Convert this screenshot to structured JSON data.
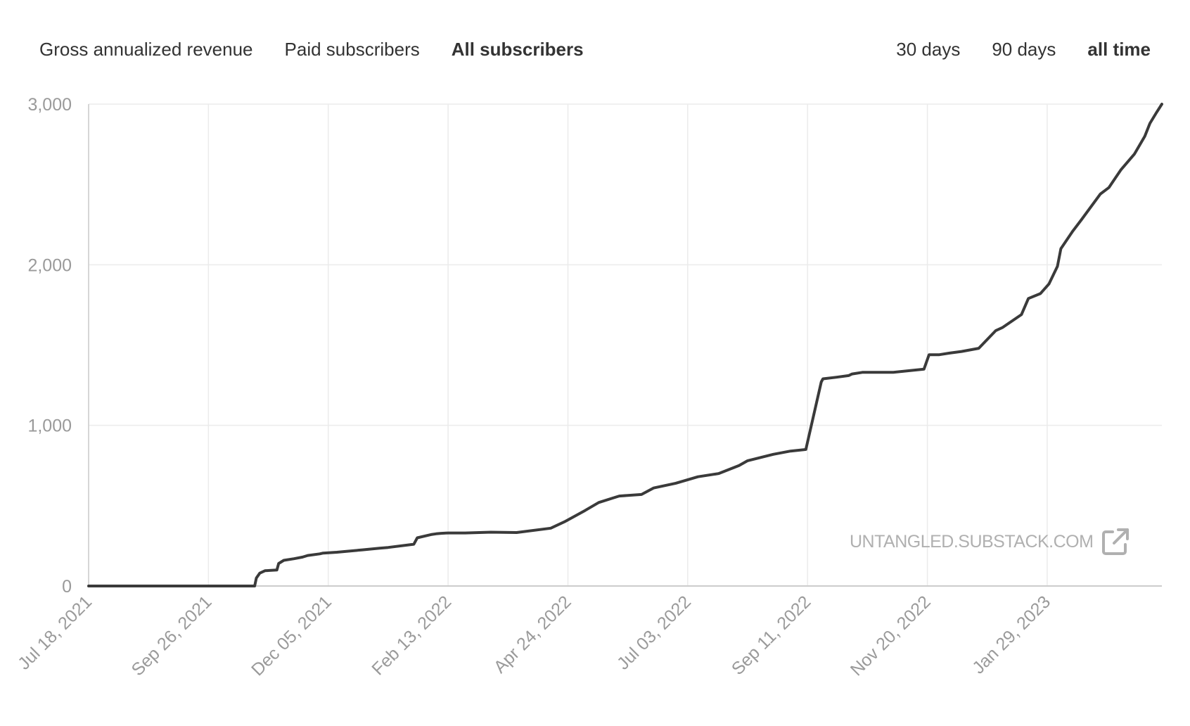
{
  "metric_tabs": [
    {
      "label": "Gross annualized revenue",
      "active": false
    },
    {
      "label": "Paid subscribers",
      "active": false
    },
    {
      "label": "All subscribers",
      "active": true
    }
  ],
  "range_tabs": [
    {
      "label": "30 days",
      "active": false
    },
    {
      "label": "90 days",
      "active": false
    },
    {
      "label": "all time",
      "active": true
    }
  ],
  "watermark": {
    "text": "UNTANGLED.SUBSTACK.COM",
    "icon": "external-link-icon"
  },
  "colors": {
    "line": "#3a3a3a",
    "grid": "#ebebeb",
    "axis": "#cccccc",
    "tick_text": "#9a9a9a",
    "watermark": "#b0b0b0"
  },
  "chart_data": {
    "type": "line",
    "title": "All subscribers",
    "xlabel": "",
    "ylabel": "",
    "ylim": [
      0,
      3000
    ],
    "yticks": [
      0,
      1000,
      2000,
      3000
    ],
    "ytick_labels": [
      "0",
      "1,000",
      "2,000",
      "3,000"
    ],
    "x_range_days": [
      0,
      627
    ],
    "xticks": [
      0,
      70,
      140,
      210,
      280,
      350,
      420,
      490,
      560
    ],
    "xtick_labels": [
      "Jul 18, 2021",
      "Sep 26, 2021",
      "Dec 05, 2021",
      "Feb 13, 2022",
      "Apr 24, 2022",
      "Jul 03, 2022",
      "Sep 11, 2022",
      "Nov 20, 2022",
      "Jan 29, 2023"
    ],
    "x_unit": "days since Jul 18, 2021",
    "grid": true,
    "series": [
      {
        "name": "All subscribers",
        "x": [
          0,
          97,
          98,
          100,
          103,
          110,
          111,
          114,
          120,
          125,
          128,
          135,
          137,
          145,
          150,
          160,
          170,
          175,
          190,
          192,
          200,
          203,
          206,
          210,
          220,
          235,
          250,
          270,
          278,
          290,
          298,
          307,
          310,
          323,
          330,
          343,
          356,
          368,
          380,
          385,
          400,
          410,
          419,
          428,
          429,
          437,
          444,
          446,
          452,
          470,
          488,
          491,
          497,
          503,
          510,
          520,
          530,
          534,
          545,
          549,
          556,
          561,
          566,
          568,
          575,
          580,
          591,
          596,
          603,
          611,
          617,
          620,
          624,
          627
        ],
        "y": [
          0,
          0,
          50,
          80,
          95,
          100,
          140,
          160,
          170,
          180,
          190,
          200,
          205,
          210,
          215,
          225,
          235,
          240,
          260,
          300,
          320,
          325,
          328,
          330,
          330,
          335,
          333,
          360,
          400,
          470,
          520,
          550,
          560,
          570,
          610,
          640,
          680,
          700,
          750,
          780,
          820,
          840,
          850,
          1270,
          1290,
          1300,
          1310,
          1320,
          1330,
          1330,
          1350,
          1440,
          1440,
          1450,
          1460,
          1480,
          1590,
          1610,
          1690,
          1790,
          1820,
          1880,
          1990,
          2100,
          2210,
          2280,
          2440,
          2480,
          2590,
          2690,
          2800,
          2880,
          2950,
          3000
        ]
      }
    ]
  }
}
